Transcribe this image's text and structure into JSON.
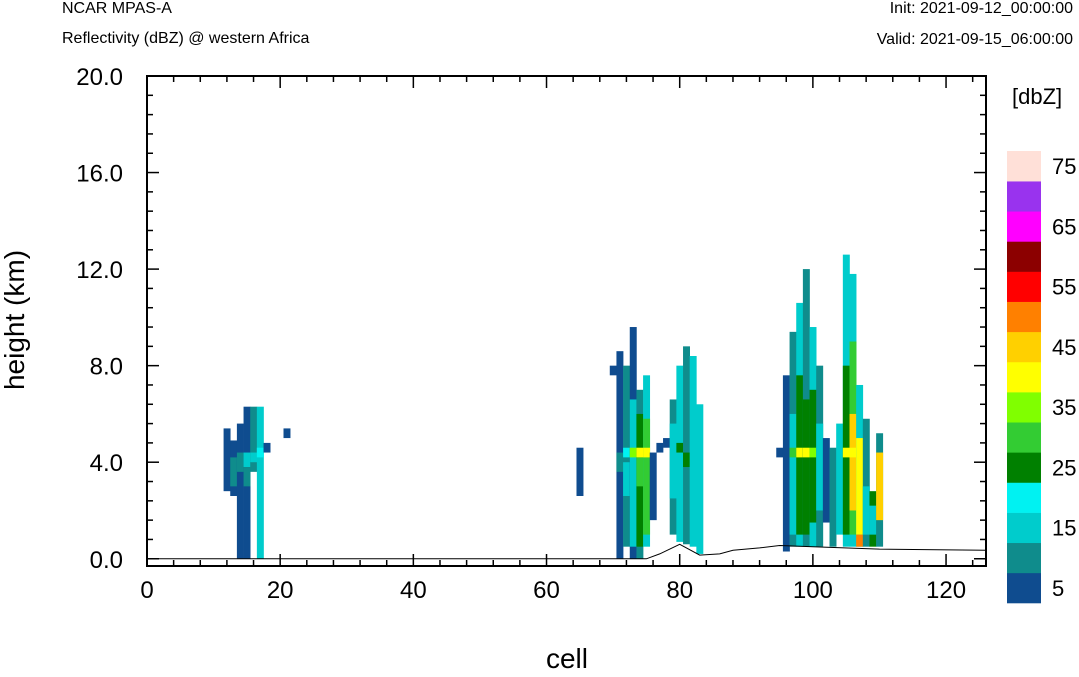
{
  "header": {
    "model": "NCAR MPAS-A",
    "field": "Reflectivity (dBZ) @ western Africa",
    "init": "Init: 2021-09-12_00:00:00",
    "valid": "Valid: 2021-09-15_06:00:00"
  },
  "chart_data": {
    "type": "heatmap",
    "xlabel": "cell",
    "ylabel": "height (km)",
    "xlim": [
      0,
      126
    ],
    "ylim": [
      -0.3,
      20.0
    ],
    "x_ticks": [
      "0",
      "20",
      "40",
      "60",
      "80",
      "100",
      "120"
    ],
    "y_ticks": [
      "0.0",
      "4.0",
      "8.0",
      "12.0",
      "16.0",
      "20.0"
    ],
    "colorbar": {
      "title": "[dbZ]",
      "levels": [
        5,
        10,
        15,
        20,
        25,
        30,
        35,
        40,
        45,
        50,
        55,
        60,
        65,
        70,
        75
      ],
      "labels": [
        "5",
        "15",
        "25",
        "35",
        "45",
        "55",
        "65",
        "75"
      ],
      "colors": [
        "#0f4c8f",
        "#0f8c8c",
        "#00cccc",
        "#00f2f2",
        "#008000",
        "#33cc33",
        "#80ff00",
        "#ffff00",
        "#ffd000",
        "#ff8000",
        "#ff0000",
        "#8c0000",
        "#ff00ff",
        "#9933ee",
        "#ffe0d8"
      ]
    },
    "cells": [
      [
        12,
        2.8,
        5.4,
        5
      ],
      [
        13,
        2.6,
        4.9,
        5
      ],
      [
        13,
        3.0,
        4.2,
        10
      ],
      [
        14,
        0.0,
        5.6,
        5
      ],
      [
        14,
        3.6,
        4.4,
        10
      ],
      [
        15,
        0.0,
        6.3,
        5
      ],
      [
        15,
        3.8,
        4.4,
        15
      ],
      [
        15,
        3.0,
        3.8,
        10
      ],
      [
        16,
        3.6,
        6.3,
        10
      ],
      [
        16,
        4.0,
        4.4,
        15
      ],
      [
        17,
        0.0,
        6.3,
        15
      ],
      [
        17,
        4.2,
        4.6,
        20
      ],
      [
        18,
        4.4,
        4.8,
        5
      ],
      [
        21,
        5.0,
        5.4,
        5
      ],
      [
        65,
        2.6,
        4.6,
        5
      ],
      [
        70,
        7.6,
        8.0,
        5
      ],
      [
        71,
        0.0,
        8.6,
        5
      ],
      [
        71,
        3.6,
        4.4,
        10
      ],
      [
        72,
        0.5,
        8.0,
        10
      ],
      [
        72,
        2.6,
        4.0,
        15
      ],
      [
        72,
        4.2,
        4.6,
        20
      ],
      [
        73,
        0.0,
        9.6,
        5
      ],
      [
        73,
        0.5,
        6.6,
        15
      ],
      [
        73,
        4.2,
        4.6,
        35
      ],
      [
        74,
        0.0,
        7.0,
        10
      ],
      [
        74,
        0.5,
        6.0,
        25
      ],
      [
        74,
        3.0,
        4.2,
        30
      ],
      [
        74,
        4.2,
        4.6,
        40
      ],
      [
        75,
        0.5,
        7.6,
        15
      ],
      [
        75,
        1.0,
        5.8,
        30
      ],
      [
        75,
        4.2,
        4.6,
        40
      ],
      [
        76,
        1.6,
        4.4,
        5
      ],
      [
        77,
        4.4,
        4.8,
        5
      ],
      [
        78,
        4.6,
        5.0,
        5
      ],
      [
        79,
        1.0,
        6.6,
        10
      ],
      [
        79,
        2.5,
        5.6,
        15
      ],
      [
        80,
        0.7,
        8.0,
        15
      ],
      [
        80,
        4.4,
        4.8,
        25
      ],
      [
        81,
        0.6,
        8.8,
        10
      ],
      [
        81,
        3.8,
        4.4,
        25
      ],
      [
        82,
        0.5,
        8.4,
        15
      ],
      [
        83,
        0.2,
        6.4,
        15
      ],
      [
        95,
        4.2,
        4.6,
        5
      ],
      [
        96,
        0.3,
        7.6,
        5
      ],
      [
        97,
        0.5,
        9.4,
        10
      ],
      [
        97,
        1.0,
        6.0,
        15
      ],
      [
        97,
        4.2,
        4.6,
        30
      ],
      [
        98,
        0.5,
        10.6,
        15
      ],
      [
        98,
        1.0,
        7.6,
        25
      ],
      [
        98,
        4.2,
        4.6,
        40
      ],
      [
        99,
        0.5,
        12.0,
        10
      ],
      [
        99,
        1.0,
        6.6,
        25
      ],
      [
        99,
        4.2,
        4.6,
        40
      ],
      [
        100,
        0.5,
        9.6,
        15
      ],
      [
        100,
        1.5,
        7.0,
        25
      ],
      [
        100,
        4.2,
        4.6,
        35
      ],
      [
        101,
        0.5,
        8.0,
        10
      ],
      [
        101,
        2.0,
        5.6,
        15
      ],
      [
        102,
        1.5,
        5.0,
        5
      ],
      [
        103,
        0.5,
        4.6,
        10
      ],
      [
        104,
        1.0,
        5.6,
        15
      ],
      [
        105,
        0.5,
        12.6,
        15
      ],
      [
        105,
        1.0,
        8.0,
        25
      ],
      [
        105,
        4.2,
        4.6,
        40
      ],
      [
        106,
        0.5,
        11.8,
        15
      ],
      [
        106,
        1.0,
        9.0,
        30
      ],
      [
        106,
        2.0,
        6.0,
        45
      ],
      [
        106,
        4.2,
        4.6,
        40
      ],
      [
        107,
        0.5,
        7.2,
        15
      ],
      [
        107,
        1.0,
        5.0,
        40
      ],
      [
        107,
        0.5,
        1.0,
        50
      ],
      [
        108,
        0.5,
        5.8,
        10
      ],
      [
        108,
        1.0,
        3.0,
        15
      ],
      [
        109,
        0.5,
        2.8,
        25
      ],
      [
        109,
        1.0,
        2.2,
        15
      ],
      [
        110,
        0.5,
        5.2,
        10
      ],
      [
        110,
        1.6,
        4.4,
        45
      ]
    ],
    "terrain": [
      [
        0,
        0.0
      ],
      [
        75,
        0.0
      ],
      [
        77,
        0.2
      ],
      [
        80,
        0.6
      ],
      [
        83,
        0.15
      ],
      [
        86,
        0.2
      ],
      [
        88,
        0.35
      ],
      [
        92,
        0.45
      ],
      [
        95,
        0.55
      ],
      [
        100,
        0.5
      ],
      [
        110,
        0.4
      ],
      [
        126,
        0.35
      ]
    ]
  }
}
